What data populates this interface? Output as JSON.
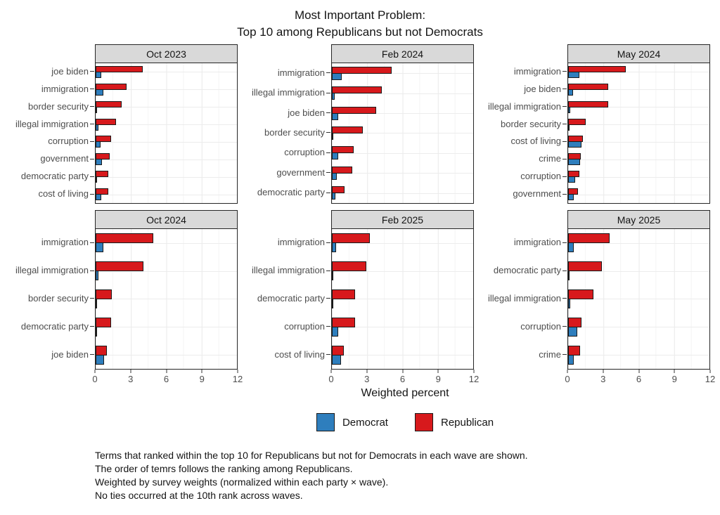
{
  "title": {
    "line1": "Most Important Problem:",
    "line2": "Top 10 among Republicans but not Democrats"
  },
  "chart_data": {
    "type": "bar",
    "orientation": "horizontal",
    "title": "Most Important Problem: Top 10 among Republicans but not Democrats",
    "xlabel": "Weighted percent",
    "xlim": [
      0,
      12
    ],
    "x_ticks": [
      0,
      3,
      6,
      9,
      12
    ],
    "grid": "major and minor vertical gridlines, light gray on white",
    "legend_position": "bottom",
    "panels": [
      {
        "title": "Oct 2023",
        "categories": [
          "joe biden",
          "immigration",
          "border security",
          "illegal immigration",
          "corruption",
          "government",
          "democratic party",
          "cost of living"
        ],
        "series": [
          {
            "name": "Republican",
            "values": [
              4.0,
              2.6,
              2.2,
              1.75,
              1.3,
              1.2,
              1.1,
              1.05
            ]
          },
          {
            "name": "Democrat",
            "values": [
              0.45,
              0.65,
              0.08,
              0.25,
              0.4,
              0.55,
              0.1,
              0.5
            ]
          }
        ]
      },
      {
        "title": "Feb 2024",
        "categories": [
          "immigration",
          "illegal immigration",
          "joe biden",
          "border security",
          "corruption",
          "government",
          "democratic party"
        ],
        "series": [
          {
            "name": "Republican",
            "values": [
              5.05,
              4.25,
              3.75,
              2.65,
              1.85,
              1.75,
              1.05
            ]
          },
          {
            "name": "Democrat",
            "values": [
              0.85,
              0.25,
              0.55,
              0.06,
              0.55,
              0.4,
              0.3
            ]
          }
        ]
      },
      {
        "title": "May 2024",
        "categories": [
          "immigration",
          "joe biden",
          "illegal immigration",
          "border security",
          "cost of living",
          "crime",
          "corruption",
          "government"
        ],
        "series": [
          {
            "name": "Republican",
            "values": [
              4.9,
              3.4,
              3.4,
              1.5,
              1.25,
              1.1,
              0.95,
              0.85
            ]
          },
          {
            "name": "Democrat",
            "values": [
              0.95,
              0.4,
              0.15,
              0.04,
              1.15,
              1.0,
              0.6,
              0.5
            ]
          }
        ]
      },
      {
        "title": "Oct 2024",
        "categories": [
          "immigration",
          "illegal immigration",
          "border security",
          "democratic party",
          "joe biden"
        ],
        "series": [
          {
            "name": "Republican",
            "values": [
              4.9,
              4.05,
              1.4,
              1.3,
              0.95
            ]
          },
          {
            "name": "Democrat",
            "values": [
              0.65,
              0.25,
              0.04,
              0.04,
              0.7
            ]
          }
        ]
      },
      {
        "title": "Feb 2025",
        "categories": [
          "immigration",
          "illegal immigration",
          "democratic party",
          "corruption",
          "cost of living"
        ],
        "series": [
          {
            "name": "Republican",
            "values": [
              3.2,
              2.95,
              2.0,
              2.0,
              1.0
            ]
          },
          {
            "name": "Democrat",
            "values": [
              0.35,
              0.04,
              0.05,
              0.55,
              0.75
            ]
          }
        ]
      },
      {
        "title": "May 2025",
        "categories": [
          "immigration",
          "democratic party",
          "illegal immigration",
          "corruption",
          "crime"
        ],
        "series": [
          {
            "name": "Republican",
            "values": [
              3.5,
              2.85,
              2.15,
              1.15,
              1.0
            ]
          },
          {
            "name": "Democrat",
            "values": [
              0.45,
              0.02,
              0.2,
              0.75,
              0.45
            ]
          }
        ]
      }
    ]
  },
  "legend": {
    "items": [
      {
        "label": "Democrat",
        "color": "#2e7ebd"
      },
      {
        "label": "Republican",
        "color": "#d7191c"
      }
    ]
  },
  "footnotes": [
    "Terms that ranked within the top 10 for Republicans but not for Democrats in each wave are shown.",
    "The order of temrs follows the ranking among Republicans.",
    "Weighted by survey weights (normalized within each party × wave).",
    "No ties occurred at the 10th rank across waves."
  ]
}
